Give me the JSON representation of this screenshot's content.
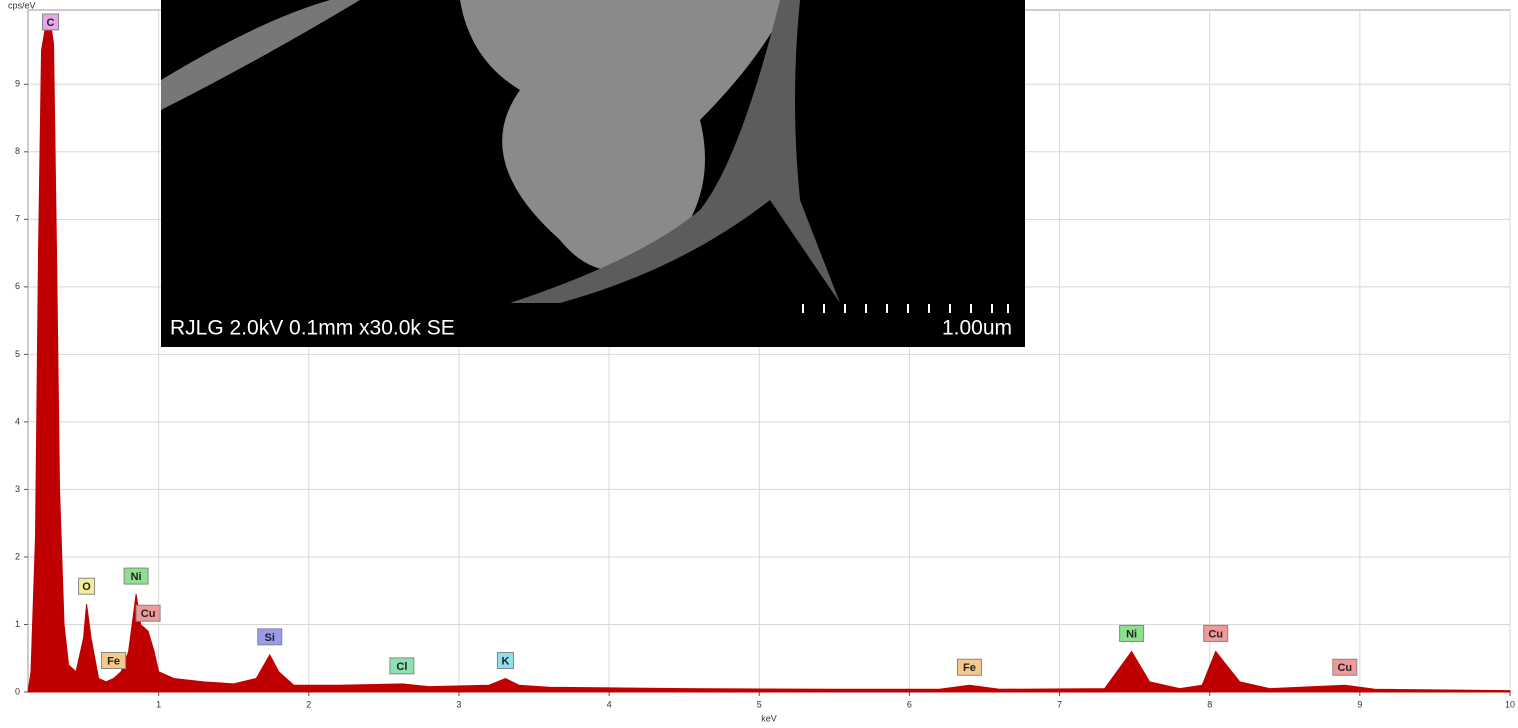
{
  "chart_data": {
    "type": "area",
    "y_label": "cps/eV",
    "x_label": "keV",
    "xlim": [
      0.13,
      10
    ],
    "ylim": [
      0,
      10.1
    ],
    "xticks": [
      1,
      2,
      3,
      4,
      5,
      6,
      7,
      8,
      9,
      10
    ],
    "yticks": [
      0,
      1,
      2,
      3,
      4,
      5,
      6,
      7,
      8,
      9
    ],
    "grid": true,
    "x": [
      0.13,
      0.15,
      0.18,
      0.2,
      0.22,
      0.25,
      0.28,
      0.3,
      0.32,
      0.34,
      0.37,
      0.4,
      0.45,
      0.5,
      0.52,
      0.55,
      0.6,
      0.65,
      0.7,
      0.75,
      0.8,
      0.85,
      0.88,
      0.93,
      0.97,
      1.0,
      1.1,
      1.3,
      1.5,
      1.65,
      1.74,
      1.8,
      1.9,
      2.2,
      2.62,
      2.8,
      3.2,
      3.31,
      3.4,
      3.6,
      4.5,
      5.5,
      6.2,
      6.4,
      6.6,
      7.3,
      7.48,
      7.6,
      7.8,
      7.95,
      8.04,
      8.2,
      8.4,
      8.9,
      9.1,
      10
    ],
    "series": [
      {
        "color": "#c00000",
        "values": [
          0,
          0.3,
          2.3,
          6.5,
          9.5,
          9.9,
          9.9,
          9.6,
          6.5,
          3.0,
          1.0,
          0.4,
          0.3,
          0.8,
          1.3,
          0.8,
          0.2,
          0.15,
          0.2,
          0.3,
          0.6,
          1.45,
          1.0,
          0.9,
          0.6,
          0.3,
          0.2,
          0.15,
          0.12,
          0.2,
          0.55,
          0.3,
          0.1,
          0.1,
          0.12,
          0.08,
          0.1,
          0.2,
          0.1,
          0.07,
          0.05,
          0.04,
          0.04,
          0.1,
          0.04,
          0.05,
          0.6,
          0.15,
          0.05,
          0.1,
          0.6,
          0.15,
          0.05,
          0.1,
          0.04,
          0.02
        ]
      }
    ],
    "annotations": [
      {
        "text": "C",
        "x": 0.28,
        "color": "#e8a6ee"
      },
      {
        "text": "O",
        "x": 0.52,
        "color": "#f3ee9a"
      },
      {
        "text": "Fe",
        "x": 0.7,
        "color": "#f5c98e"
      },
      {
        "text": "Ni",
        "x": 0.85,
        "color": "#8ee08e"
      },
      {
        "text": "Cu",
        "x": 0.93,
        "color": "#ee9a9a"
      },
      {
        "text": "Si",
        "x": 1.74,
        "color": "#9a9aee"
      },
      {
        "text": "Cl",
        "x": 2.62,
        "color": "#8ee0b0"
      },
      {
        "text": "K",
        "x": 3.31,
        "color": "#8ee0ee"
      },
      {
        "text": "Fe",
        "x": 6.4,
        "color": "#f5c98e"
      },
      {
        "text": "Ni",
        "x": 7.48,
        "color": "#8ee08e"
      },
      {
        "text": "Cu",
        "x": 8.04,
        "color": "#ee9a9a"
      },
      {
        "text": "Cu",
        "x": 8.9,
        "color": "#ee9a9a"
      }
    ]
  },
  "inset": {
    "caption": "RJLG 2.0kV 0.1mm x30.0k SE",
    "scale_label": "1.00um"
  }
}
